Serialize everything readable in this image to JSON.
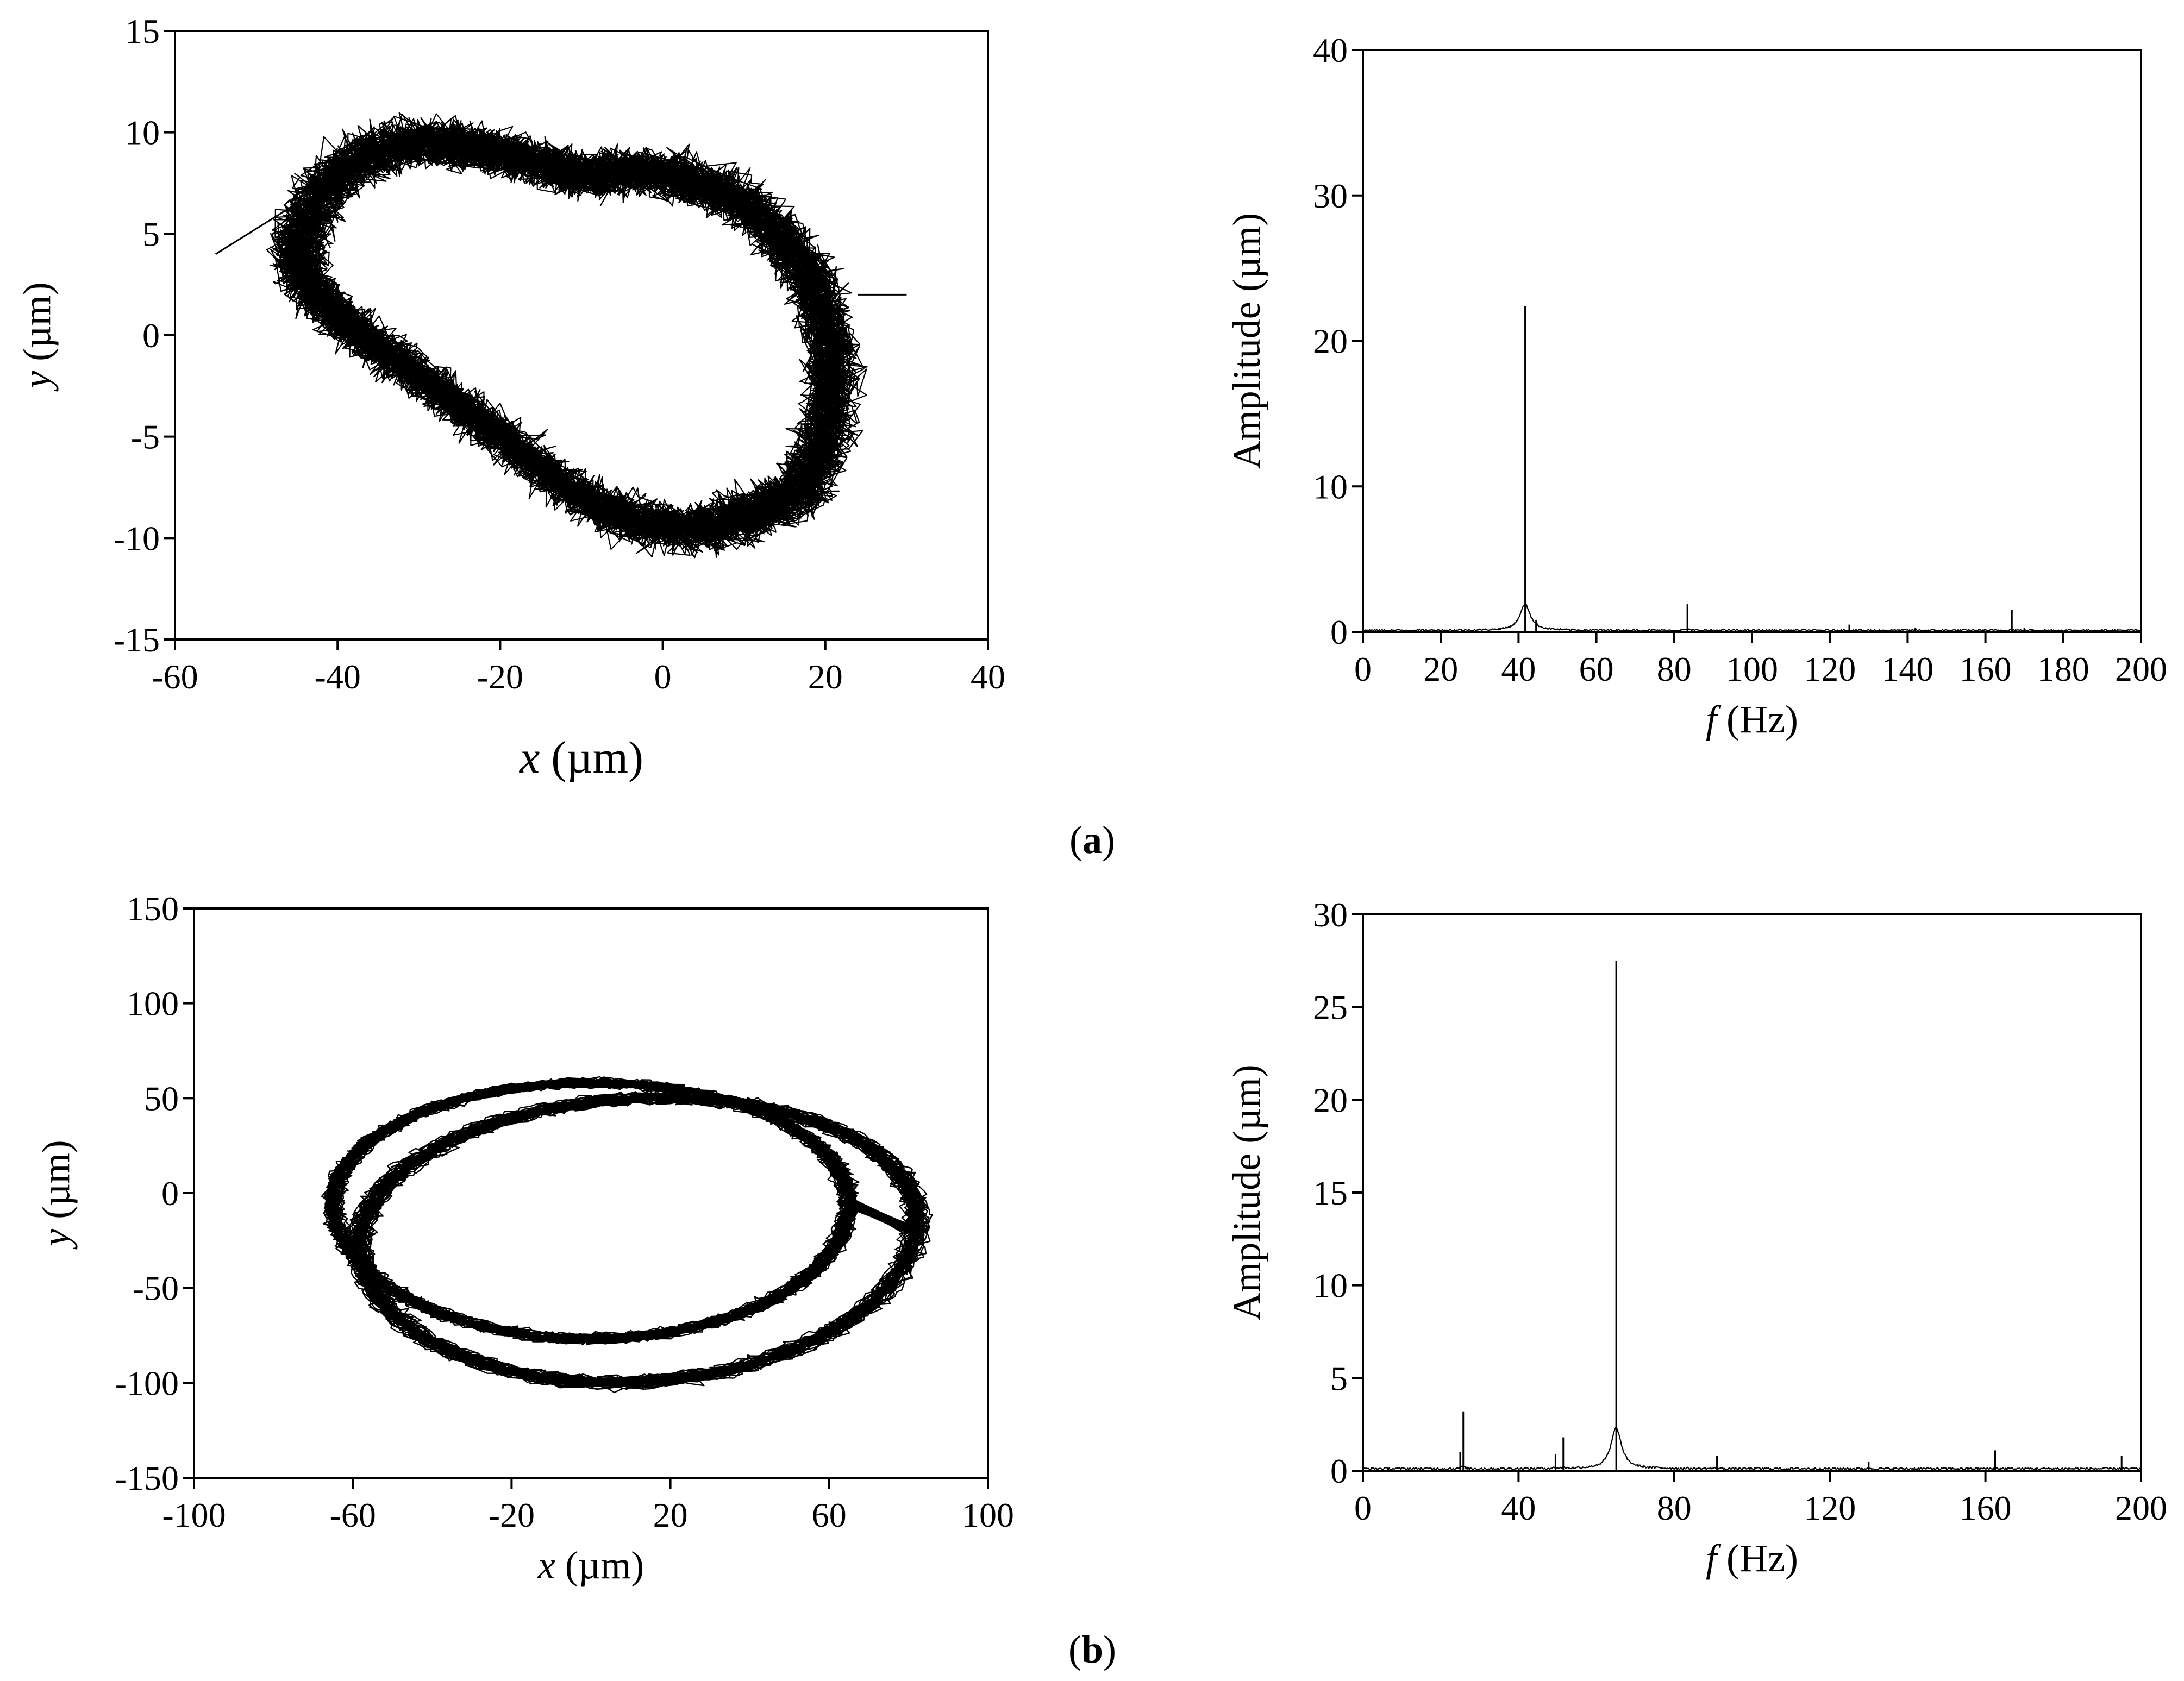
{
  "panels": {
    "a": {
      "label": "(a)",
      "letter": "a"
    },
    "b": {
      "label": "(b)",
      "letter": "b"
    }
  },
  "chart_data": [
    {
      "id": "a-orbit",
      "type": "line",
      "panel": "a",
      "title": "",
      "xlabel": "x (µm)",
      "xlabel_var": "x",
      "xlabel_unit": " (µm)",
      "ylabel": "y (µm)",
      "xlim": [
        -60,
        40
      ],
      "ylim": [
        -15,
        15
      ],
      "xticks": [
        -60,
        -40,
        -20,
        0,
        20,
        40
      ],
      "yticks": [
        -15,
        -10,
        -5,
        0,
        5,
        10,
        15
      ],
      "grid": false,
      "orbit": {
        "description_points": "closed noisy loop traced repeatedly",
        "outer_extent_x": [
          -55,
          30
        ],
        "outer_extent_y": [
          -13,
          14
        ],
        "loop": [
          [
            -45,
            4
          ],
          [
            -40,
            8
          ],
          [
            -30,
            9.5
          ],
          [
            -20,
            9
          ],
          [
            -10,
            8
          ],
          [
            0,
            8
          ],
          [
            10,
            6.5
          ],
          [
            18,
            3
          ],
          [
            21,
            -2
          ],
          [
            18,
            -7
          ],
          [
            10,
            -9
          ],
          [
            0,
            -9.5
          ],
          [
            -10,
            -8
          ],
          [
            -20,
            -5
          ],
          [
            -30,
            -2
          ],
          [
            -40,
            1
          ],
          [
            -45,
            4
          ]
        ]
      }
    },
    {
      "id": "a-spectrum",
      "type": "line",
      "panel": "a",
      "title": "",
      "xlabel": "f (Hz)",
      "xlabel_var": "f",
      "xlabel_unit": " (Hz)",
      "ylabel": "Amplitude (µm)",
      "xlim": [
        0,
        200
      ],
      "ylim": [
        0,
        40
      ],
      "xticks": [
        0,
        20,
        40,
        60,
        80,
        100,
        120,
        140,
        160,
        180,
        200
      ],
      "yticks": [
        0,
        10,
        20,
        30,
        40
      ],
      "grid": false,
      "peaks": [
        {
          "f": 41.7,
          "amplitude": 22.4
        },
        {
          "f": 44.5,
          "amplitude": 0.8
        },
        {
          "f": 83.4,
          "amplitude": 1.9
        },
        {
          "f": 125,
          "amplitude": 0.5
        },
        {
          "f": 142,
          "amplitude": 0.3
        },
        {
          "f": 166.8,
          "amplitude": 1.5
        },
        {
          "f": 170,
          "amplitude": 0.3
        }
      ]
    },
    {
      "id": "b-orbit",
      "type": "line",
      "panel": "b",
      "title": "",
      "xlabel": "x (µm)",
      "xlabel_var": "x",
      "xlabel_unit": " (µm)",
      "ylabel": "y (µm)",
      "xlim": [
        -100,
        100
      ],
      "ylim": [
        -150,
        150
      ],
      "xticks": [
        -100,
        -60,
        -20,
        20,
        60,
        100
      ],
      "yticks": [
        -150,
        -100,
        -50,
        0,
        50,
        100,
        150
      ],
      "grid": false,
      "orbit": {
        "description_points": "two overlapping noisy elliptical loops",
        "outer_extent_x": [
          -70,
          85
        ],
        "outer_extent_y": [
          -103,
          83
        ],
        "loop1": {
          "cx": 0,
          "cy": -5,
          "rx": 65,
          "ry": 72
        },
        "loop2": {
          "cx": 12,
          "cy": -20,
          "rx": 70,
          "ry": 80
        }
      }
    },
    {
      "id": "b-spectrum",
      "type": "line",
      "panel": "b",
      "title": "",
      "xlabel": "f (Hz)",
      "xlabel_var": "f",
      "xlabel_unit": " (Hz)",
      "ylabel": "Amplitude (µm)",
      "xlim": [
        0,
        200
      ],
      "ylim": [
        0,
        30
      ],
      "xticks": [
        0,
        40,
        80,
        120,
        160,
        200
      ],
      "yticks": [
        0,
        5,
        10,
        15,
        20,
        25,
        30
      ],
      "grid": false,
      "peaks": [
        {
          "f": 25,
          "amplitude": 1.0
        },
        {
          "f": 25.8,
          "amplitude": 3.2
        },
        {
          "f": 49.5,
          "amplitude": 0.9
        },
        {
          "f": 51.5,
          "amplitude": 1.8
        },
        {
          "f": 65.1,
          "amplitude": 27.5
        },
        {
          "f": 91,
          "amplitude": 0.8
        },
        {
          "f": 130,
          "amplitude": 0.5
        },
        {
          "f": 162.5,
          "amplitude": 1.1
        },
        {
          "f": 195,
          "amplitude": 0.8
        }
      ]
    }
  ]
}
